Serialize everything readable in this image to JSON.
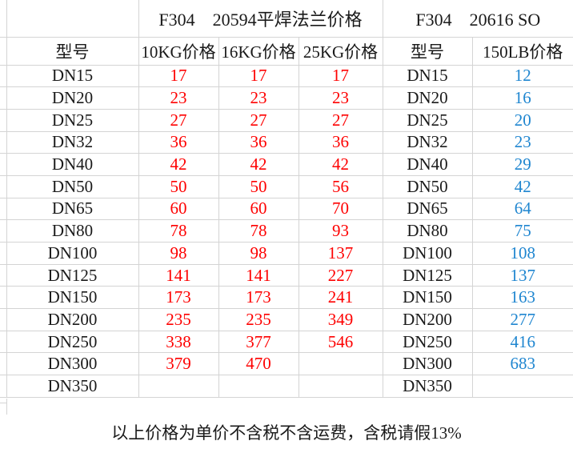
{
  "titles": {
    "left": "F304　20594平焊法兰价格",
    "right": "F304　20616 SO"
  },
  "headers": [
    "型号",
    "10KG价格",
    "16KG价格",
    "25KG价格",
    "型号",
    "150LB价格"
  ],
  "rows": [
    [
      "DN15",
      "17",
      "17",
      "17",
      "DN15",
      "12"
    ],
    [
      "DN20",
      "23",
      "23",
      "23",
      "DN20",
      "16"
    ],
    [
      "DN25",
      "27",
      "27",
      "27",
      "DN25",
      "20"
    ],
    [
      "DN32",
      "36",
      "36",
      "36",
      "DN32",
      "23"
    ],
    [
      "DN40",
      "42",
      "42",
      "42",
      "DN40",
      "29"
    ],
    [
      "DN50",
      "50",
      "50",
      "56",
      "DN50",
      "42"
    ],
    [
      "DN65",
      "60",
      "60",
      "70",
      "DN65",
      "64"
    ],
    [
      "DN80",
      "78",
      "78",
      "93",
      "DN80",
      "75"
    ],
    [
      "DN100",
      "98",
      "98",
      "137",
      "DN100",
      "108"
    ],
    [
      "DN125",
      "141",
      "141",
      "227",
      "DN125",
      "137"
    ],
    [
      "DN150",
      "173",
      "173",
      "241",
      "DN150",
      "163"
    ],
    [
      "DN200",
      "235",
      "235",
      "349",
      "DN200",
      "277"
    ],
    [
      "DN250",
      "338",
      "377",
      "546",
      "DN250",
      "416"
    ],
    [
      "DN300",
      "379",
      "470",
      "",
      "DN300",
      "683"
    ],
    [
      "DN350",
      "",
      "",
      "",
      "DN350",
      ""
    ]
  ],
  "footer_note": "以上价格为单价不含税不含运费，含税请假13%",
  "colors": {
    "left_price": "#fe0000",
    "right_price": "#1f86d0",
    "gridline": "#d4d4d4",
    "text": "#1a1a1a"
  }
}
